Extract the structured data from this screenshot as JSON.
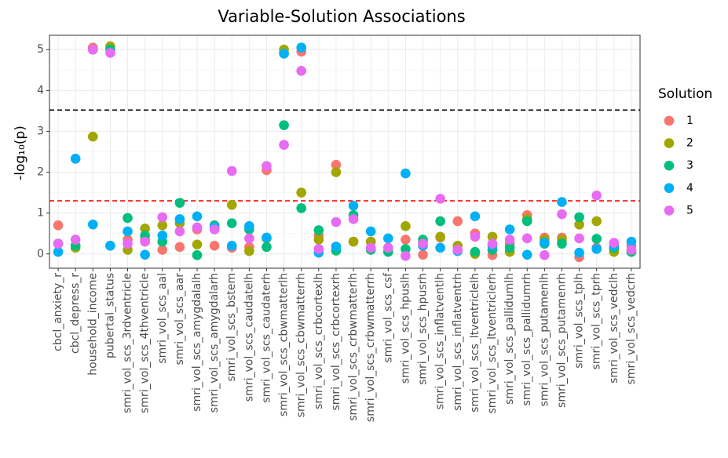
{
  "chart_data": {
    "type": "scatter",
    "title": "Variable-Solution Associations",
    "y_label": "-log₁₀(p)",
    "legend_title": "Solution",
    "categories": [
      "cbcl_anxiety_r",
      "cbcl_depress_r",
      "household_income",
      "pubertal_status",
      "smri_vol_scs_3rdventricle",
      "smri_vol_scs_4thventricle",
      "smri_vol_scs_aal",
      "smri_vol_scs_aar",
      "smri_vol_scs_amygdalalh",
      "smri_vol_scs_amygdalarh",
      "smri_vol_scs_bstem",
      "smri_vol_scs_caudatelh",
      "smri_vol_scs_caudaterh",
      "smri_vol_scs_cbwmatterlh",
      "smri_vol_scs_cbwmatterrh",
      "smri_vol_scs_crbcortexlh",
      "smri_vol_scs_crbcortexrh",
      "smri_vol_scs_crbwmatterlh",
      "smri_vol_scs_crbwmatterrh",
      "smri_vol_scs_csf",
      "smri_vol_scs_hpuslh",
      "smri_vol_scs_hpusrh",
      "smri_vol_scs_inflatventlh",
      "smri_vol_scs_inflatventrh",
      "smri_vol_scs_ltventriclelh",
      "smri_vol_scs_ltventriclerh",
      "smri_vol_scs_pallidumlh",
      "smri_vol_scs_pallidumrh",
      "smri_vol_scs_putamenlh",
      "smri_vol_scs_putamenrh",
      "smri_vol_scs_tplh",
      "smri_vol_scs_tprh",
      "smri_vol_scs_vedclh",
      "smri_vol_scs_vedcrh"
    ],
    "series": [
      {
        "name": "1",
        "color": "#F8766D",
        "values": [
          0.7,
          0.2,
          5.05,
          0.2,
          0.35,
          0.35,
          0.1,
          0.17,
          0.6,
          0.2,
          0.15,
          0.17,
          2.05,
          4.92,
          4.95,
          0.45,
          2.18,
          0.3,
          0.3,
          0.15,
          0.35,
          -0.02,
          0.4,
          0.8,
          0.5,
          -0.03,
          0.25,
          0.95,
          0.4,
          0.4,
          -0.08,
          0.15,
          0.12,
          0.2
        ]
      },
      {
        "name": "2",
        "color": "#A3A500",
        "values": [
          0.25,
          0.15,
          2.87,
          5.08,
          0.1,
          0.62,
          0.7,
          0.75,
          0.23,
          0.65,
          1.2,
          0.07,
          0.38,
          5.0,
          1.5,
          0.35,
          2.0,
          0.3,
          0.3,
          0.15,
          0.68,
          0.3,
          0.42,
          0.2,
          0.0,
          0.42,
          0.05,
          0.85,
          0.35,
          0.35,
          0.72,
          0.8,
          0.05,
          0.05
        ]
      },
      {
        "name": "3",
        "color": "#00BF7D",
        "values": [
          0.25,
          0.2,
          5.0,
          5.0,
          0.88,
          0.45,
          0.3,
          1.25,
          -0.03,
          0.7,
          0.75,
          0.6,
          0.17,
          3.15,
          1.12,
          0.58,
          0.08,
          0.95,
          0.1,
          0.05,
          0.12,
          0.35,
          0.8,
          0.1,
          0.05,
          0.1,
          0.15,
          0.8,
          0.25,
          0.25,
          0.9,
          0.37,
          0.15,
          0.05
        ]
      },
      {
        "name": "4",
        "color": "#00B0F6",
        "values": [
          0.05,
          2.33,
          0.72,
          0.2,
          0.55,
          -0.02,
          0.45,
          0.85,
          0.92,
          0.65,
          0.2,
          0.68,
          0.4,
          4.9,
          5.05,
          0.03,
          0.18,
          1.18,
          0.55,
          0.38,
          1.97,
          0.2,
          0.15,
          0.07,
          0.92,
          0.2,
          0.6,
          -0.02,
          0.28,
          1.27,
          0.03,
          0.12,
          0.2,
          0.3
        ]
      },
      {
        "name": "5",
        "color": "#E76BF3",
        "values": [
          0.25,
          0.35,
          5.0,
          4.92,
          0.25,
          0.3,
          0.9,
          0.55,
          0.65,
          0.6,
          2.03,
          0.38,
          2.15,
          2.67,
          4.48,
          0.12,
          0.78,
          0.85,
          0.15,
          0.15,
          -0.05,
          0.25,
          1.35,
          0.1,
          0.42,
          0.25,
          0.35,
          0.38,
          -0.03,
          0.97,
          0.38,
          1.43,
          0.27,
          0.1
        ]
      }
    ],
    "ylim": [
      -0.35,
      5.35
    ],
    "yticks": [
      0,
      1,
      2,
      3,
      4,
      5
    ],
    "grid": true,
    "hlines": [
      {
        "value": 3.52,
        "color": "#000000"
      },
      {
        "value": 1.3,
        "color": "#FF0000"
      }
    ],
    "legend_position": "right"
  }
}
